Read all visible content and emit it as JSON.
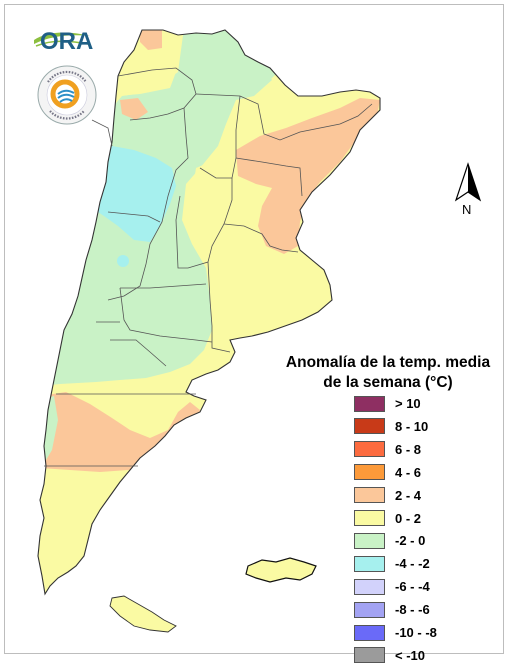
{
  "logo": {
    "text": "ORA",
    "seal_ring_text": "INSTITUTO NACIONAL DE TECNOLOGÍA AGROPECUARIA · ARGENTINA"
  },
  "north_arrow": {
    "letter": "N"
  },
  "legend": {
    "title_line1": "Anomalía de la temp. media",
    "title_line2": "de la semana (°C)",
    "items": [
      {
        "label": "> 10",
        "color": "#8e2f62"
      },
      {
        "label": "8 - 10",
        "color": "#c83a18"
      },
      {
        "label": "6 - 8",
        "color": "#fc6b3f"
      },
      {
        "label": "4 - 6",
        "color": "#fc9a3a"
      },
      {
        "label": "2 - 4",
        "color": "#fbc79a"
      },
      {
        "label": "0 - 2",
        "color": "#fafaa3"
      },
      {
        "label": "-2 - 0",
        "color": "#c9f2c6"
      },
      {
        "label": "-4 - -2",
        "color": "#a6f0ee"
      },
      {
        "label": "-6 - -4",
        "color": "#d2d2fb"
      },
      {
        "label": "-8 - -6",
        "color": "#a3a3f3"
      },
      {
        "label": "-10 - -8",
        "color": "#6a6af8"
      },
      {
        "label": "< -10",
        "color": "#9b9b9b"
      }
    ]
  },
  "map": {
    "country": "Argentina",
    "zone_colors": {
      "anomaly_0_2": "#fafaa3",
      "anomaly_2_4": "#fbc79a",
      "anomaly_m2_0": "#c9f2c6",
      "anomaly_m4_m2": "#a6f0ee"
    }
  }
}
